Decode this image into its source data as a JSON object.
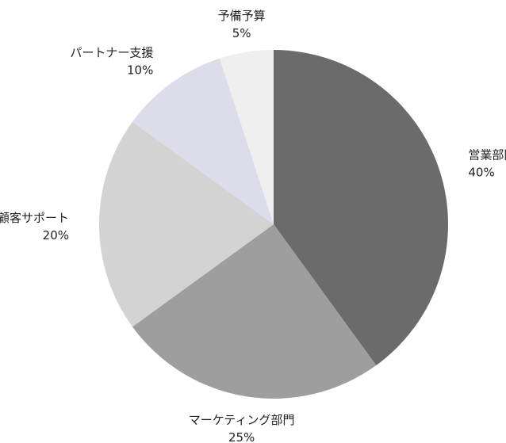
{
  "chart_data": {
    "type": "pie",
    "categories": [
      "営業部門",
      "マーケティング部門",
      "顧客サポート",
      "パートナー支援",
      "予備予算"
    ],
    "values": [
      40,
      25,
      20,
      10,
      5
    ],
    "value_labels": [
      "40%",
      "25%",
      "20%",
      "10%",
      "5%"
    ],
    "colors": [
      "#6b6b6b",
      "#9e9e9e",
      "#d3d3d3",
      "#dcdcea",
      "#efefef"
    ],
    "start_angle": "12 o'clock",
    "direction": "clockwise",
    "legend": "none"
  }
}
